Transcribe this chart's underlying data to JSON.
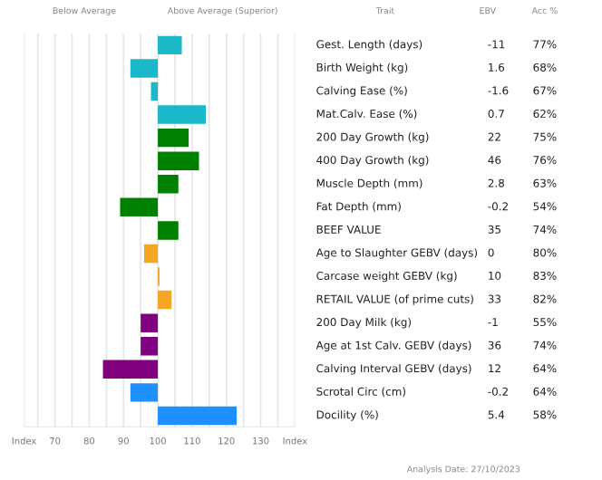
{
  "chart_data": {
    "type": "bar",
    "orientation": "horizontal",
    "categories": [
      "Gest. Length (days)",
      "Birth Weight (kg)",
      "Calving Ease (%)",
      "Mat.Calv. Ease (%)",
      "200 Day Growth (kg)",
      "400 Day Growth (kg)",
      "Muscle Depth (mm)",
      "Fat Depth (mm)",
      "BEEF VALUE",
      "Age to Slaughter GEBV (days)",
      "Carcase weight GEBV (kg)",
      "RETAIL VALUE (of prime cuts)",
      "200 Day Milk (kg)",
      "Age at 1st Calv. GEBV (days)",
      "Calving Interval GEBV (days)",
      "Scrotal Circ (cm)",
      "Docility (%)"
    ],
    "base": [
      100,
      100,
      100,
      100,
      100,
      100,
      100,
      100,
      100,
      100,
      100,
      100,
      100,
      100,
      100,
      100,
      100
    ],
    "values": [
      7,
      -8,
      -2,
      14,
      9,
      12,
      6,
      -11,
      6,
      -4,
      0.5,
      4,
      -5,
      -5,
      -16,
      -8,
      23
    ],
    "colors": [
      "#1ab8c8",
      "#1ab8c8",
      "#1ab8c8",
      "#1ab8c8",
      "#008000",
      "#008000",
      "#008000",
      "#008000",
      "#008000",
      "#f5a623",
      "#f5a623",
      "#f5a623",
      "#800080",
      "#800080",
      "#800080",
      "#1e90ff",
      "#1e90ff"
    ],
    "xlim": [
      61,
      140
    ],
    "xticks": [
      {
        "value": 61,
        "label": "Index"
      },
      {
        "value": 65,
        "label": null
      },
      70,
      {
        "value": 75,
        "label": null
      },
      80,
      {
        "value": 85,
        "label": null
      },
      90,
      {
        "value": 95,
        "label": null
      },
      100,
      {
        "value": 105,
        "label": null
      },
      110,
      {
        "value": 115,
        "label": null
      },
      120,
      {
        "value": 125,
        "label": null
      },
      130,
      {
        "value": 135,
        "label": null
      },
      {
        "value": 140,
        "label": "Index"
      }
    ],
    "grid": "x",
    "annotations": [
      "Below Average",
      "Above Average (Superior)",
      "Trait",
      "EBV",
      "Acc %",
      "Analysis Date: 27/10/2023",
      "-11",
      "77%",
      "1.6",
      "68%",
      "-1.6",
      "67%",
      "0.7",
      "62%",
      "22",
      "75%",
      "46",
      "76%",
      "2.8",
      "63%",
      "-0.2",
      "54%",
      "35",
      "74%",
      "0",
      "80%",
      "10",
      "83%",
      "33",
      "82%",
      "-1",
      "55%",
      "36",
      "74%",
      "12",
      "64%",
      "-0.2",
      "64%",
      "5.4",
      "58%"
    ]
  }
}
